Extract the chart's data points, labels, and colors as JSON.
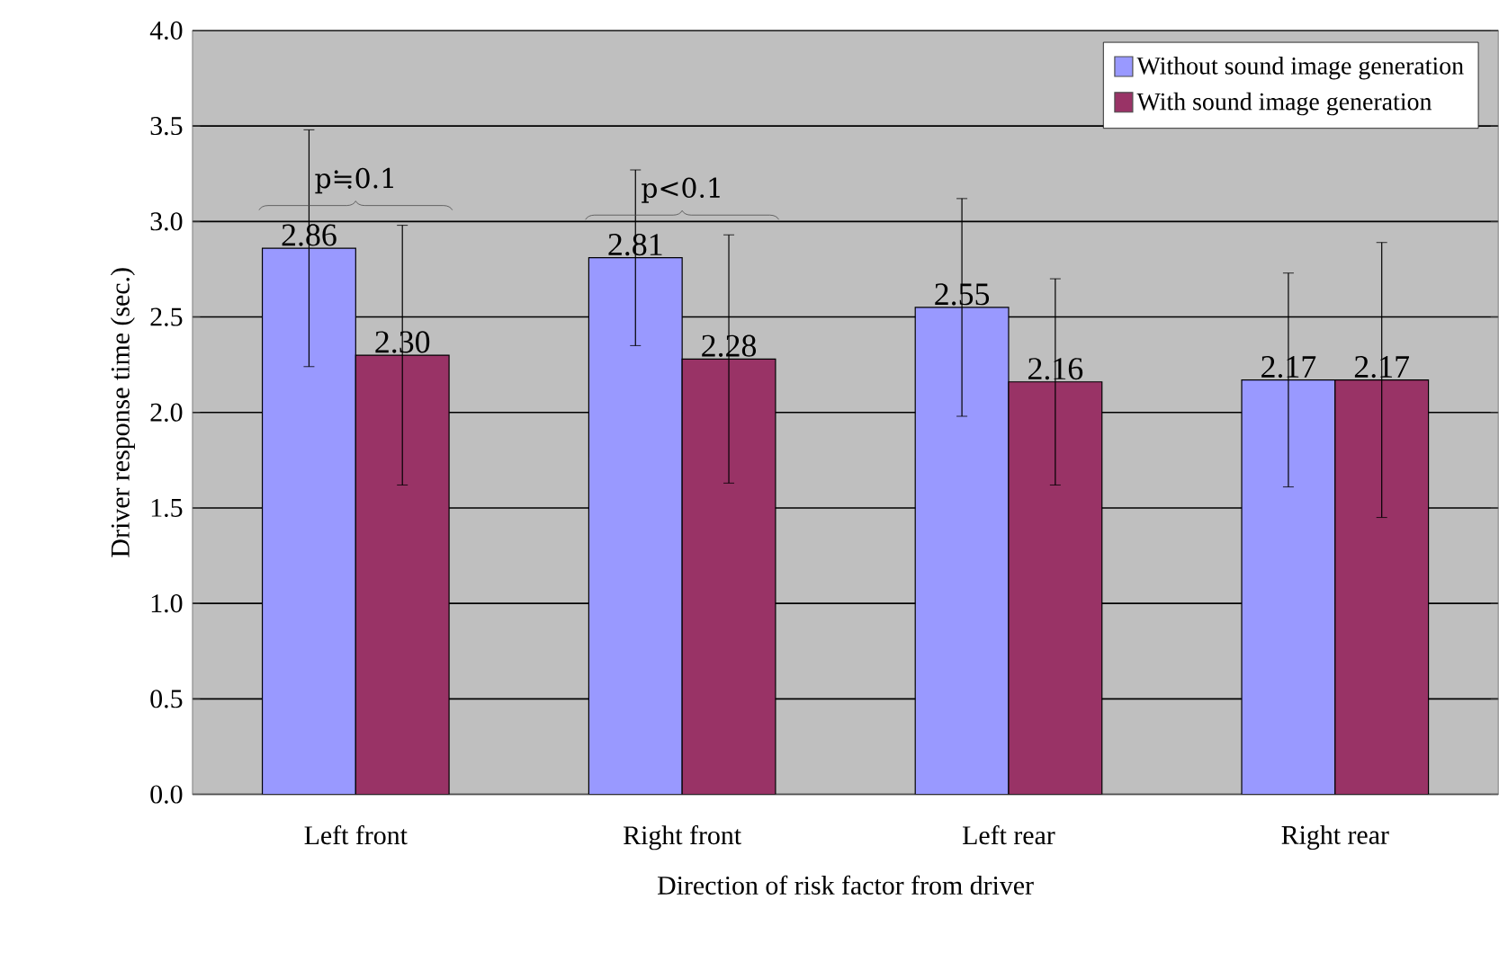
{
  "chart_data": {
    "type": "bar",
    "xlabel": "Direction of risk factor from driver",
    "ylabel": "Driver response time (sec.)",
    "categories": [
      "Left front",
      "Right front",
      "Left rear",
      "Right rear"
    ],
    "series": [
      {
        "name": "Without sound image generation",
        "color": "#9999ff",
        "values": [
          2.86,
          2.81,
          2.55,
          2.17
        ],
        "errors": [
          0.62,
          0.46,
          0.57,
          0.56
        ],
        "value_labels": [
          "2.86",
          "2.81",
          "2.55",
          "2.17"
        ]
      },
      {
        "name": "With sound image generation",
        "color": "#993366",
        "values": [
          2.3,
          2.28,
          2.16,
          2.17
        ],
        "errors": [
          0.68,
          0.65,
          0.54,
          0.72
        ],
        "value_labels": [
          "2.30",
          "2.28",
          "2.16",
          "2.17"
        ]
      }
    ],
    "ylim": [
      0,
      4
    ],
    "yticks": [
      {
        "value": 0,
        "label": "0.0"
      },
      {
        "value": 0.5,
        "label": "0.5"
      },
      {
        "value": 1,
        "label": "1.0"
      },
      {
        "value": 1.5,
        "label": "1.5"
      },
      {
        "value": 2,
        "label": "2.0"
      },
      {
        "value": 2.5,
        "label": "2.5"
      },
      {
        "value": 3,
        "label": "3.0"
      },
      {
        "value": 3.5,
        "label": "3.5"
      },
      {
        "value": 4,
        "label": "4.0"
      }
    ],
    "annotations": [
      "p≒0.1",
      "p<0.1"
    ],
    "grid": "y",
    "legend": "top right"
  }
}
